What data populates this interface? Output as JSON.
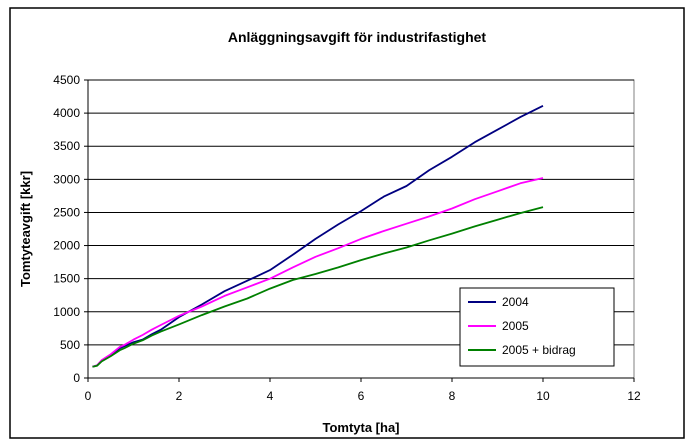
{
  "chart_data": {
    "type": "line",
    "title": "Anläggningsavgift för industrifastighet",
    "xlabel": "Tomtyta [ha]",
    "ylabel": "Tomtyteavgift [kkr]",
    "xlim": [
      0,
      12
    ],
    "ylim": [
      0,
      4500
    ],
    "xticks": [
      0,
      2,
      4,
      6,
      8,
      10,
      12
    ],
    "yticks": [
      0,
      500,
      1000,
      1500,
      2000,
      2500,
      3000,
      3500,
      4000,
      4500
    ],
    "grid": "horizontal",
    "legend_position": "right",
    "x": [
      0.1,
      0.2,
      0.3,
      0.5,
      0.7,
      0.8,
      1.0,
      1.2,
      1.4,
      1.6,
      2.0,
      2.5,
      3.0,
      3.5,
      4.0,
      4.5,
      5.0,
      5.5,
      6.0,
      6.5,
      7.0,
      7.5,
      8.0,
      8.5,
      9.0,
      9.5,
      10.0
    ],
    "series": [
      {
        "name": "2004",
        "color": "#000080",
        "values": [
          170,
          190,
          260,
          340,
          450,
          480,
          540,
          580,
          660,
          730,
          920,
          1110,
          1310,
          1470,
          1630,
          1860,
          2100,
          2320,
          2520,
          2740,
          2900,
          3140,
          3340,
          3560,
          3750,
          3940,
          4110
        ]
      },
      {
        "name": "2005",
        "color": "#ff00ff",
        "values": [
          170,
          190,
          270,
          360,
          470,
          500,
          580,
          650,
          730,
          800,
          940,
          1080,
          1240,
          1370,
          1500,
          1670,
          1830,
          1960,
          2100,
          2220,
          2330,
          2440,
          2560,
          2700,
          2820,
          2940,
          3020
        ]
      },
      {
        "name": "2005 + bidrag",
        "color": "#008000",
        "values": [
          170,
          185,
          250,
          330,
          420,
          450,
          520,
          570,
          640,
          700,
          810,
          950,
          1080,
          1200,
          1350,
          1480,
          1570,
          1670,
          1780,
          1880,
          1970,
          2080,
          2180,
          2290,
          2390,
          2490,
          2580
        ]
      }
    ]
  }
}
